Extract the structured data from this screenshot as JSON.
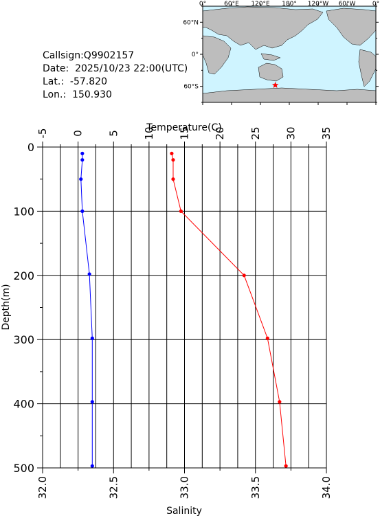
{
  "info": {
    "callsign": "Callsign:Q9902157",
    "date": "Date:  2025/10/23 22:00(UTC)",
    "lat": "Lat.:  -57.820",
    "lon": "Lon.:  150.930"
  },
  "map": {
    "lon_labels": [
      "0°",
      "60°E",
      "120°E",
      "180°",
      "120°W",
      "60°W",
      "0°"
    ],
    "lat_labels": [
      "60°N",
      "0°",
      "60°S"
    ],
    "station": {
      "lat": -57.82,
      "lon": 150.93
    },
    "colors": {
      "ocean": "#cff4ff",
      "land": "#bdbdbd",
      "marker": "#ff0000"
    }
  },
  "chart_data": {
    "type": "line",
    "title": "",
    "ylabel": "Depth(m)",
    "ylim": [
      0,
      500
    ],
    "yticks": [
      "0",
      "100",
      "200",
      "300",
      "400",
      "500"
    ],
    "temperature_axis": {
      "label": "Temperature(C)",
      "xlim": [
        -5,
        35
      ],
      "ticks": [
        "-5",
        "0",
        "5",
        "10",
        "15",
        "20",
        "25",
        "30",
        "35"
      ],
      "position": "top"
    },
    "salinity_axis": {
      "label": "Salinity",
      "xlim": [
        32.0,
        34.0
      ],
      "ticks": [
        "32.0",
        "32.5",
        "33.0",
        "33.5",
        "34.0"
      ],
      "position": "bottom"
    },
    "grid": true,
    "series": [
      {
        "axis": "temperature",
        "color": "#ff0000",
        "points": [
          [
            13.2,
            10
          ],
          [
            13.4,
            20
          ],
          [
            13.4,
            50
          ],
          [
            14.5,
            100
          ],
          [
            23.4,
            200
          ],
          [
            26.7,
            298
          ],
          [
            28.4,
            397
          ],
          [
            29.3,
            497
          ]
        ]
      },
      {
        "axis": "salinity",
        "color": "#0000ff",
        "points": [
          [
            32.28,
            10
          ],
          [
            32.28,
            20
          ],
          [
            32.27,
            50
          ],
          [
            32.28,
            100
          ],
          [
            32.33,
            198
          ],
          [
            32.35,
            298
          ],
          [
            32.35,
            397
          ],
          [
            32.35,
            497
          ]
        ]
      }
    ]
  }
}
